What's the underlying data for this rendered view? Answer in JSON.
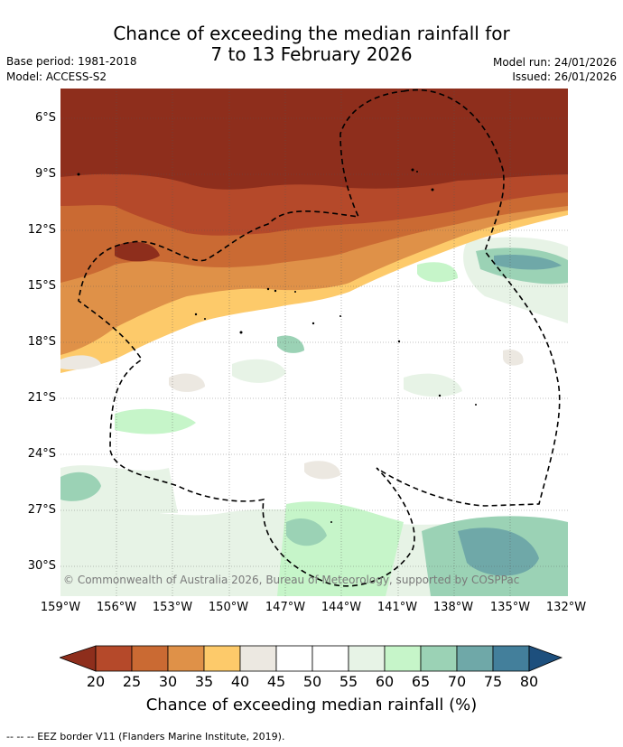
{
  "header": {
    "title_line1": "Chance of exceeding the median rainfall for",
    "title_line2": "7 to 13 February 2026",
    "base_period": "Base period: 1981-2018",
    "model": "Model: ACCESS-S2",
    "model_run": "Model run: 24/01/2026",
    "issued": "Issued: 26/01/2026"
  },
  "map": {
    "copyright": "© Commonwealth of Australia 2026, Bureau of Meteorology, supported by COSPPac",
    "lat_labels": [
      "6°S",
      "9°S",
      "12°S",
      "15°S",
      "18°S",
      "21°S",
      "24°S",
      "27°S",
      "30°S"
    ],
    "lon_labels": [
      "159°W",
      "156°W",
      "153°W",
      "150°W",
      "147°W",
      "144°W",
      "141°W",
      "138°W",
      "135°W",
      "132°W"
    ],
    "eez_border": "EEZ border"
  },
  "colorbar": {
    "ticks": [
      "20",
      "25",
      "30",
      "35",
      "40",
      "45",
      "50",
      "55",
      "60",
      "65",
      "70",
      "75",
      "80"
    ],
    "colors": [
      "#8e2e1c",
      "#b5492a",
      "#ca6a33",
      "#df9148",
      "#fdca6a",
      "#ece8e1",
      "#ffffff",
      "#ffffff",
      "#e7f3e6",
      "#c6f5c9",
      "#9bd2b5",
      "#6fa8a8",
      "#437f9b",
      "#1d4f7d"
    ],
    "title": "Chance of exceeding median rainfall (%)"
  },
  "footer": {
    "legend": "--  --  -- EEZ border V11 (Flanders Marine Institute, 2019)."
  }
}
